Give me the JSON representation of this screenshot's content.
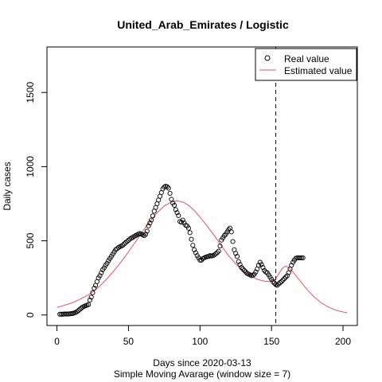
{
  "chart_data": {
    "type": "scatter",
    "title": "United_Arab_Emirates / Logistic",
    "xlabel": "Days since 2020-03-13",
    "subtitle": "Simple Moving Avarage (window size = 7)",
    "ylabel": "Daily cases",
    "xlim": [
      -7,
      210
    ],
    "ylim": [
      -71,
      1807
    ],
    "x_ticks": [
      0,
      50,
      100,
      150,
      200
    ],
    "y_ticks": [
      0,
      500,
      1000,
      1500
    ],
    "grid": false,
    "legend_position": "top-right",
    "vline_x": 153,
    "colors": {
      "real": "#000000",
      "estimated": "#DF536B",
      "vline": "#000000"
    },
    "legend": [
      {
        "label": "Real value",
        "symbol": "open-circle"
      },
      {
        "label": "Estimated value",
        "symbol": "line"
      }
    ],
    "real_value": [
      [
        2,
        5
      ],
      [
        3,
        5
      ],
      [
        4,
        5
      ],
      [
        5,
        6
      ],
      [
        6,
        6
      ],
      [
        7,
        6
      ],
      [
        8,
        7
      ],
      [
        9,
        8
      ],
      [
        10,
        9
      ],
      [
        11,
        10
      ],
      [
        12,
        13
      ],
      [
        13,
        17
      ],
      [
        14,
        22
      ],
      [
        15,
        30
      ],
      [
        16,
        38
      ],
      [
        17,
        46
      ],
      [
        18,
        53
      ],
      [
        19,
        58
      ],
      [
        20,
        62
      ],
      [
        21,
        66
      ],
      [
        22,
        70
      ],
      [
        23,
        100
      ],
      [
        24,
        120
      ],
      [
        25,
        150
      ],
      [
        26,
        180
      ],
      [
        27,
        200
      ],
      [
        28,
        225
      ],
      [
        29,
        250
      ],
      [
        30,
        265
      ],
      [
        31,
        285
      ],
      [
        32,
        305
      ],
      [
        33,
        318
      ],
      [
        34,
        335
      ],
      [
        35,
        348
      ],
      [
        36,
        365
      ],
      [
        37,
        380
      ],
      [
        38,
        395
      ],
      [
        39,
        410
      ],
      [
        40,
        425
      ],
      [
        41,
        440
      ],
      [
        42,
        447
      ],
      [
        43,
        455
      ],
      [
        44,
        460
      ],
      [
        45,
        465
      ],
      [
        46,
        470
      ],
      [
        47,
        480
      ],
      [
        48,
        488
      ],
      [
        49,
        495
      ],
      [
        50,
        503
      ],
      [
        51,
        512
      ],
      [
        52,
        518
      ],
      [
        53,
        523
      ],
      [
        54,
        530
      ],
      [
        55,
        535
      ],
      [
        56,
        540
      ],
      [
        57,
        545
      ],
      [
        58,
        548
      ],
      [
        59,
        545
      ],
      [
        60,
        540
      ],
      [
        61,
        535
      ],
      [
        62,
        545
      ],
      [
        63,
        565
      ],
      [
        64,
        600
      ],
      [
        65,
        620
      ],
      [
        66,
        640
      ],
      [
        67,
        668
      ],
      [
        68,
        700
      ],
      [
        69,
        725
      ],
      [
        70,
        750
      ],
      [
        71,
        775
      ],
      [
        72,
        800
      ],
      [
        73,
        825
      ],
      [
        74,
        850
      ],
      [
        75,
        862
      ],
      [
        76,
        868
      ],
      [
        77,
        865
      ],
      [
        78,
        855
      ],
      [
        79,
        820
      ],
      [
        80,
        780
      ],
      [
        81,
        755
      ],
      [
        82,
        740
      ],
      [
        83,
        710
      ],
      [
        84,
        690
      ],
      [
        85,
        670
      ],
      [
        86,
        630
      ],
      [
        87,
        625
      ],
      [
        88,
        640
      ],
      [
        89,
        620
      ],
      [
        90,
        605
      ],
      [
        91,
        600
      ],
      [
        92,
        585
      ],
      [
        93,
        555
      ],
      [
        94,
        510
      ],
      [
        95,
        470
      ],
      [
        96,
        440
      ],
      [
        97,
        420
      ],
      [
        98,
        400
      ],
      [
        99,
        385
      ],
      [
        100,
        370
      ],
      [
        101,
        370
      ],
      [
        102,
        380
      ],
      [
        103,
        385
      ],
      [
        104,
        390
      ],
      [
        105,
        393
      ],
      [
        106,
        395
      ],
      [
        107,
        400
      ],
      [
        108,
        398
      ],
      [
        109,
        400
      ],
      [
        110,
        405
      ],
      [
        111,
        412
      ],
      [
        112,
        420
      ],
      [
        113,
        430
      ],
      [
        114,
        465
      ],
      [
        115,
        505
      ],
      [
        116,
        520
      ],
      [
        117,
        535
      ],
      [
        118,
        545
      ],
      [
        119,
        560
      ],
      [
        120,
        575
      ],
      [
        121,
        585
      ],
      [
        122,
        560
      ],
      [
        123,
        495
      ],
      [
        124,
        440
      ],
      [
        125,
        415
      ],
      [
        126,
        395
      ],
      [
        127,
        360
      ],
      [
        128,
        340
      ],
      [
        129,
        320
      ],
      [
        130,
        310
      ],
      [
        131,
        300
      ],
      [
        132,
        290
      ],
      [
        133,
        280
      ],
      [
        134,
        275
      ],
      [
        135,
        270
      ],
      [
        136,
        265
      ],
      [
        137,
        268
      ],
      [
        138,
        275
      ],
      [
        139,
        290
      ],
      [
        140,
        310
      ],
      [
        141,
        335
      ],
      [
        142,
        355
      ],
      [
        143,
        340
      ],
      [
        144,
        320
      ],
      [
        145,
        300
      ],
      [
        146,
        290
      ],
      [
        147,
        285
      ],
      [
        148,
        270
      ],
      [
        149,
        255
      ],
      [
        150,
        240
      ],
      [
        151,
        225
      ],
      [
        152,
        215
      ],
      [
        153,
        205
      ],
      [
        154,
        200
      ],
      [
        155,
        210
      ],
      [
        156,
        218
      ],
      [
        157,
        225
      ],
      [
        158,
        235
      ],
      [
        159,
        245
      ],
      [
        160,
        255
      ],
      [
        161,
        265
      ],
      [
        162,
        285
      ],
      [
        163,
        310
      ],
      [
        164,
        335
      ],
      [
        165,
        355
      ],
      [
        166,
        370
      ],
      [
        167,
        382
      ],
      [
        168,
        385
      ],
      [
        169,
        385
      ],
      [
        170,
        385
      ],
      [
        171,
        385
      ],
      [
        172,
        385
      ]
    ],
    "estimated_value": [
      [
        0,
        50
      ],
      [
        5,
        65
      ],
      [
        10,
        80
      ],
      [
        15,
        100
      ],
      [
        20,
        125
      ],
      [
        25,
        155
      ],
      [
        30,
        195
      ],
      [
        35,
        245
      ],
      [
        40,
        300
      ],
      [
        45,
        360
      ],
      [
        50,
        425
      ],
      [
        55,
        495
      ],
      [
        60,
        565
      ],
      [
        65,
        630
      ],
      [
        70,
        690
      ],
      [
        75,
        735
      ],
      [
        80,
        762
      ],
      [
        84,
        770
      ],
      [
        88,
        762
      ],
      [
        92,
        740
      ],
      [
        96,
        705
      ],
      [
        100,
        660
      ],
      [
        105,
        600
      ],
      [
        110,
        535
      ],
      [
        115,
        465
      ],
      [
        120,
        400
      ],
      [
        125,
        345
      ],
      [
        130,
        300
      ],
      [
        135,
        265
      ],
      [
        140,
        240
      ],
      [
        145,
        228
      ],
      [
        148,
        225
      ],
      [
        152,
        232
      ],
      [
        156,
        290
      ],
      [
        158,
        318
      ],
      [
        160,
        330
      ],
      [
        162,
        320
      ],
      [
        165,
        290
      ],
      [
        170,
        230
      ],
      [
        175,
        170
      ],
      [
        180,
        120
      ],
      [
        185,
        80
      ],
      [
        190,
        52
      ],
      [
        195,
        32
      ],
      [
        200,
        20
      ],
      [
        203,
        15
      ]
    ]
  }
}
